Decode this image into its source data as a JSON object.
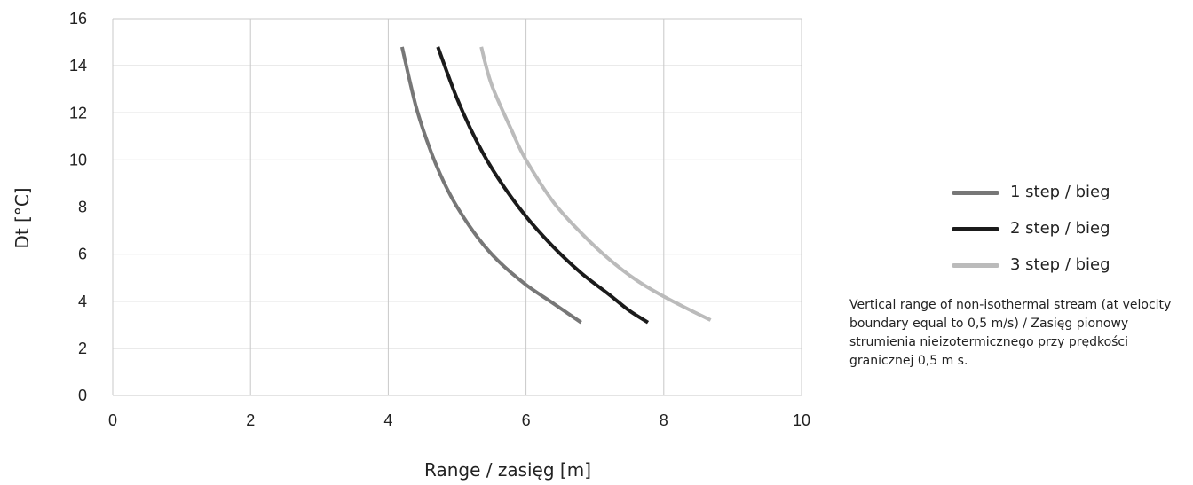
{
  "chart_data": {
    "type": "line",
    "title": "",
    "xlabel": "Range / zasięg [m]",
    "ylabel": "Dt [°C]",
    "xlim": [
      0,
      10
    ],
    "ylim": [
      0,
      16
    ],
    "xticks": [
      "0",
      "2",
      "4",
      "6",
      "8",
      "10"
    ],
    "yticks": [
      "0",
      "2",
      "4",
      "6",
      "8",
      "10",
      "12",
      "14",
      "16"
    ],
    "grid": true,
    "legend_position": "right",
    "series": [
      {
        "name": "1 step / bieg",
        "color": "#777777",
        "points": [
          [
            4.2,
            14.8
          ],
          [
            4.4,
            12.3
          ],
          [
            4.6,
            10.5
          ],
          [
            4.8,
            9.1
          ],
          [
            5.0,
            8.0
          ],
          [
            5.3,
            6.7
          ],
          [
            5.6,
            5.7
          ],
          [
            6.0,
            4.7
          ],
          [
            6.4,
            3.9
          ],
          [
            6.8,
            3.1
          ]
        ]
      },
      {
        "name": "2 step / bieg",
        "color": "#1b1b1b",
        "points": [
          [
            4.72,
            14.8
          ],
          [
            5.0,
            12.6
          ],
          [
            5.3,
            10.7
          ],
          [
            5.6,
            9.2
          ],
          [
            6.0,
            7.6
          ],
          [
            6.4,
            6.3
          ],
          [
            6.8,
            5.2
          ],
          [
            7.2,
            4.3
          ],
          [
            7.5,
            3.6
          ],
          [
            7.77,
            3.1
          ]
        ]
      },
      {
        "name": "3 step / bieg",
        "color": "#bbbbbb",
        "points": [
          [
            5.35,
            14.8
          ],
          [
            5.5,
            13.2
          ],
          [
            5.8,
            11.2
          ],
          [
            6.0,
            10.0
          ],
          [
            6.4,
            8.2
          ],
          [
            6.8,
            6.9
          ],
          [
            7.2,
            5.8
          ],
          [
            7.6,
            4.9
          ],
          [
            8.0,
            4.2
          ],
          [
            8.4,
            3.6
          ],
          [
            8.68,
            3.2
          ]
        ]
      }
    ]
  },
  "caption": "Vertical range of non-isothermal stream (at velocity boundary equal to 0,5 m/s) / Zasięg pionowy strumienia nieizotermicznego przy prędkości granicznej 0,5 m s."
}
